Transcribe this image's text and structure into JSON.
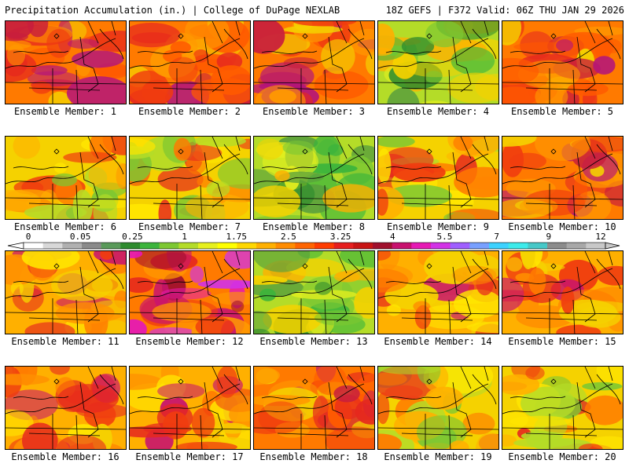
{
  "header": {
    "left_title": "Precipitation Accumulation (in.) | College of DuPage NEXLAB",
    "right_title": "18Z GEFS | F372 Valid: 06Z THU JAN 29 2026"
  },
  "members": [
    {
      "label": "Ensemble Member: 1",
      "palette": "red"
    },
    {
      "label": "Ensemble Member: 2",
      "palette": "red"
    },
    {
      "label": "Ensemble Member: 3",
      "palette": "red"
    },
    {
      "label": "Ensemble Member: 4",
      "palette": "green"
    },
    {
      "label": "Ensemble Member: 5",
      "palette": "red"
    },
    {
      "label": "Ensemble Member: 6",
      "palette": "yellow"
    },
    {
      "label": "Ensemble Member: 7",
      "palette": "yellow"
    },
    {
      "label": "Ensemble Member: 8",
      "palette": "green"
    },
    {
      "label": "Ensemble Member: 9",
      "palette": "yellow"
    },
    {
      "label": "Ensemble Member: 10",
      "palette": "red"
    },
    {
      "label": "Ensemble Member: 11",
      "palette": "orange"
    },
    {
      "label": "Ensemble Member: 12",
      "palette": "magenta"
    },
    {
      "label": "Ensemble Member: 13",
      "palette": "green"
    },
    {
      "label": "Ensemble Member: 14",
      "palette": "orange"
    },
    {
      "label": "Ensemble Member: 15",
      "palette": "orange"
    },
    {
      "label": "Ensemble Member: 16",
      "palette": "orange"
    },
    {
      "label": "Ensemble Member: 17",
      "palette": "orange"
    },
    {
      "label": "Ensemble Member: 18",
      "palette": "red"
    },
    {
      "label": "Ensemble Member: 19",
      "palette": "yellow"
    },
    {
      "label": "Ensemble Member: 20",
      "palette": "yellow"
    }
  ],
  "colorbar": {
    "labels": [
      "0",
      "0.05",
      "0.25",
      "1",
      "1.75",
      "2.5",
      "3.25",
      "4",
      "5.5",
      "7",
      "9",
      "12"
    ],
    "colors": [
      "#ffffff",
      "#d8d8d8",
      "#b0b0b0",
      "#8a8a8a",
      "#5a9a5a",
      "#2e8b2e",
      "#3cb43c",
      "#7dc832",
      "#b4dc28",
      "#e6f01e",
      "#ffff00",
      "#ffd700",
      "#ffb000",
      "#ff8c00",
      "#ff6400",
      "#ff3c00",
      "#e61e1e",
      "#c81414",
      "#a0102d",
      "#c8106e",
      "#e619b4",
      "#d232e6",
      "#9f5fff",
      "#78a0ff",
      "#3cd2ff",
      "#3cebeb",
      "#46c8c8",
      "#8c8c8c",
      "#a8a8a8",
      "#c8c8c8"
    ]
  }
}
